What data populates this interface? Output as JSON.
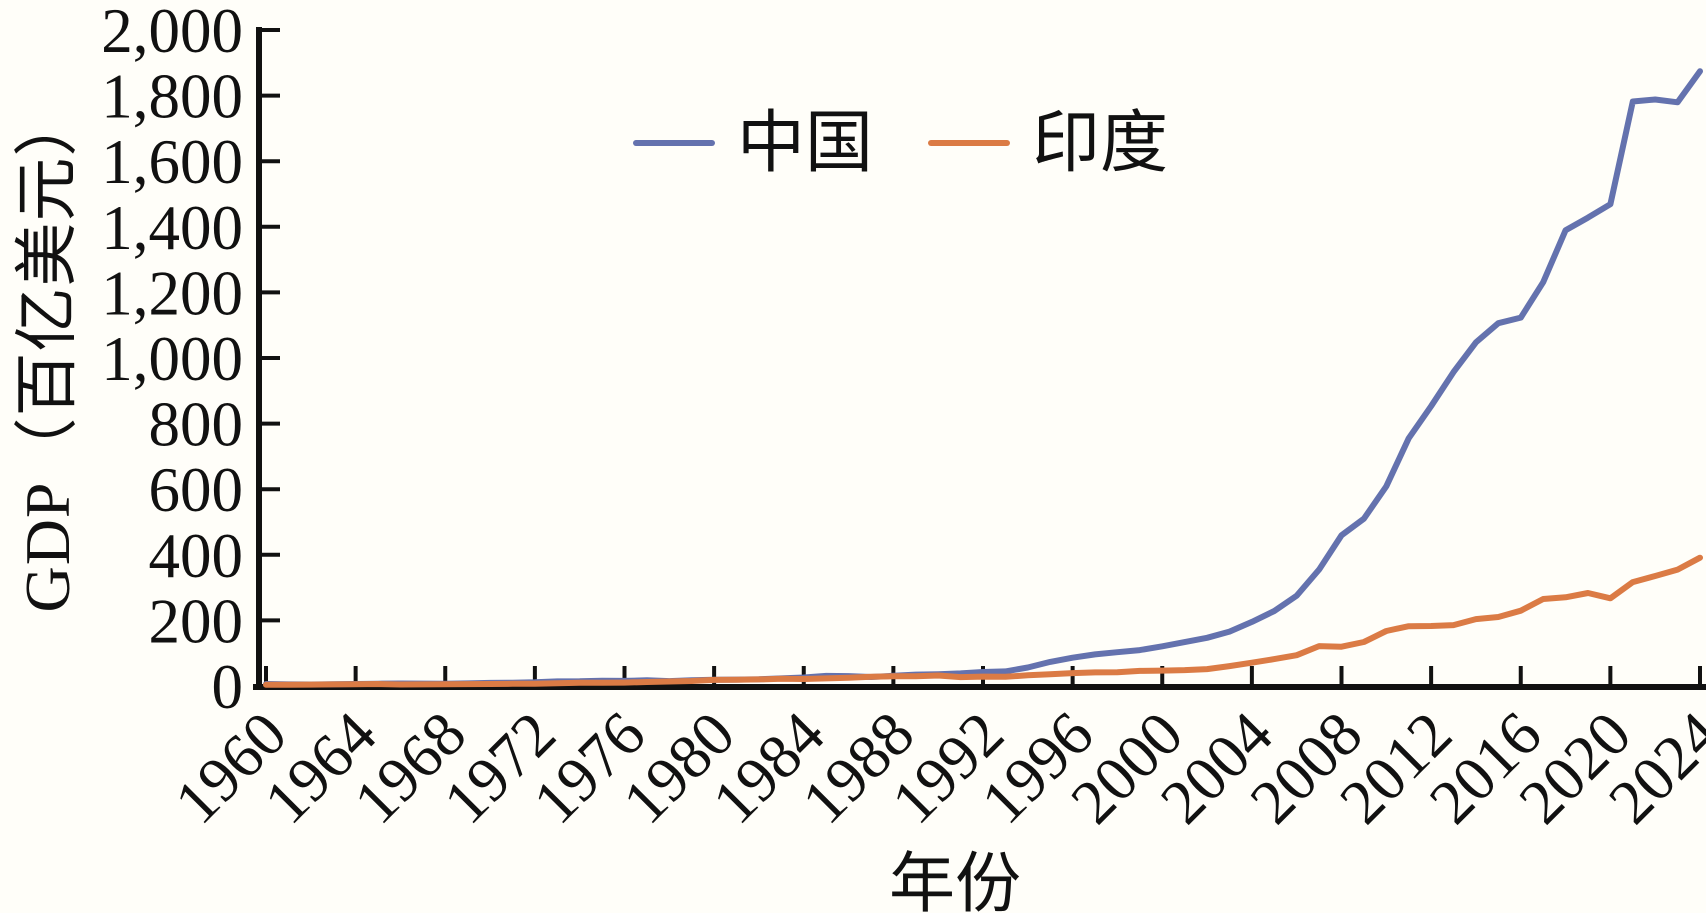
{
  "figure": {
    "background": "#fffef9",
    "axis_color": "#111111",
    "text_color": "#111111"
  },
  "chart_data": {
    "type": "line",
    "title": "",
    "xlabel": "年份",
    "ylabel": "GDP（百亿美元）",
    "unit": "百亿美元",
    "grid": false,
    "legend_position": "top-center",
    "xlim": [
      1960,
      2024
    ],
    "ylim": [
      0,
      2000
    ],
    "xticks": [
      1960,
      1964,
      1968,
      1972,
      1976,
      1980,
      1984,
      1988,
      1992,
      1996,
      2000,
      2004,
      2008,
      2012,
      2016,
      2020,
      2024
    ],
    "yticks": [
      0,
      200,
      400,
      600,
      800,
      1000,
      1200,
      1400,
      1600,
      1800,
      2000
    ],
    "ytick_labels": [
      "0",
      "200",
      "400",
      "600",
      "800",
      "1,000",
      "1,200",
      "1,400",
      "1,600",
      "1,800",
      "2,000"
    ],
    "x": [
      1960,
      1961,
      1962,
      1963,
      1964,
      1965,
      1966,
      1967,
      1968,
      1969,
      1970,
      1971,
      1972,
      1973,
      1974,
      1975,
      1976,
      1977,
      1978,
      1979,
      1980,
      1981,
      1982,
      1983,
      1984,
      1985,
      1986,
      1987,
      1988,
      1989,
      1990,
      1991,
      1992,
      1993,
      1994,
      1995,
      1996,
      1997,
      1998,
      1999,
      2000,
      2001,
      2002,
      2003,
      2004,
      2005,
      2006,
      2007,
      2008,
      2009,
      2010,
      2011,
      2012,
      2013,
      2014,
      2015,
      2016,
      2017,
      2018,
      2019,
      2020,
      2021,
      2022,
      2023,
      2024
    ],
    "series": [
      {
        "name": "中国",
        "color": "#6472AE",
        "values": [
          6.0,
          5.0,
          4.7,
          5.1,
          6.0,
          7.0,
          7.7,
          7.3,
          7.1,
          8.0,
          9.3,
          10.0,
          11.4,
          13.9,
          14.4,
          16.3,
          15.4,
          17.5,
          15.0,
          17.8,
          19.1,
          19.6,
          20.5,
          23.1,
          26.0,
          30.9,
          30.1,
          27.3,
          31.2,
          34.8,
          36.1,
          38.3,
          42.7,
          44.5,
          56.4,
          73.5,
          86.4,
          96.2,
          102.9,
          109.4,
          121.1,
          133.9,
          147.1,
          166.0,
          195.5,
          228.6,
          275.2,
          355.0,
          459.4,
          510.2,
          608.7,
          755.2,
          853.2,
          957.0,
          1047.6,
          1106.2,
          1123.3,
          1231.0,
          1389.5,
          1428.0,
          1468.8,
          1782.0,
          1788.2,
          1779.5,
          1874.4
        ]
      },
      {
        "name": "印度",
        "color": "#DB7B45",
        "values": [
          3.7,
          3.9,
          4.2,
          4.8,
          5.6,
          6.0,
          4.6,
          5.0,
          5.3,
          5.8,
          6.2,
          6.7,
          7.1,
          8.6,
          10.0,
          9.8,
          10.3,
          12.1,
          13.7,
          15.3,
          18.6,
          19.3,
          20.1,
          21.8,
          21.2,
          23.3,
          24.9,
          27.9,
          29.7,
          29.6,
          32.1,
          27.0,
          28.8,
          27.9,
          32.7,
          36.0,
          39.3,
          41.6,
          42.1,
          45.9,
          46.8,
          48.5,
          51.5,
          60.8,
          70.9,
          82.0,
          94.0,
          121.7,
          119.9,
          134.2,
          167.6,
          182.3,
          182.8,
          185.7,
          203.9,
          210.4,
          229.5,
          265.1,
          270.3,
          283.6,
          267.5,
          316.7,
          335.4,
          355.0,
          391.3
        ]
      }
    ]
  }
}
